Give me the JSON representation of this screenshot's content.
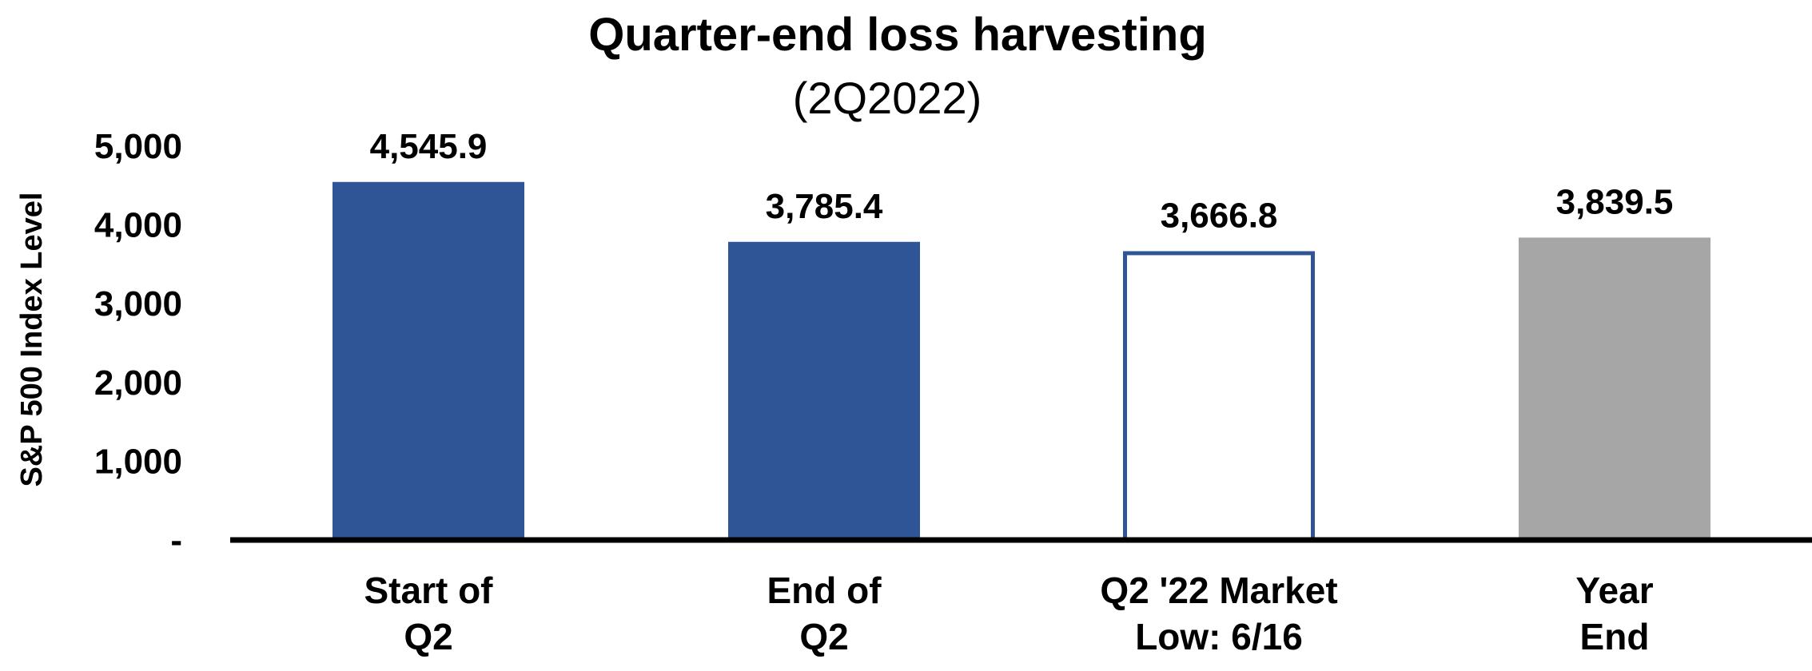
{
  "colors": {
    "primary_bar": "#2F5597",
    "outline_bar_fill": "#FFFFFF",
    "outline_bar_stroke": "#2F5597",
    "grey_bar": "#A6A6A6",
    "axis": "#000000"
  },
  "chart_data": {
    "type": "bar",
    "title": "Quarter-end loss harvesting",
    "subtitle": "(2Q2022)",
    "ylabel": "S&P 500 Index Level",
    "xlabel": "",
    "ylim": [
      0,
      5000
    ],
    "yticks": [
      0,
      1000,
      2000,
      3000,
      4000,
      5000
    ],
    "ytick_labels": [
      "-",
      "1,000",
      "2,000",
      "3,000",
      "4,000",
      "5,000"
    ],
    "grid": false,
    "categories": [
      [
        "Start of",
        "Q2"
      ],
      [
        "End of",
        "Q2"
      ],
      [
        "Q2 '22 Market",
        "Low: 6/16"
      ],
      [
        "Year",
        "End"
      ]
    ],
    "values": [
      4545.9,
      3785.4,
      3666.8,
      3839.5
    ],
    "data_labels": [
      "4,545.9",
      "3,785.4",
      "3,666.8",
      "3,839.5"
    ],
    "bar_styles": [
      "filled",
      "filled",
      "outline",
      "grey"
    ]
  }
}
